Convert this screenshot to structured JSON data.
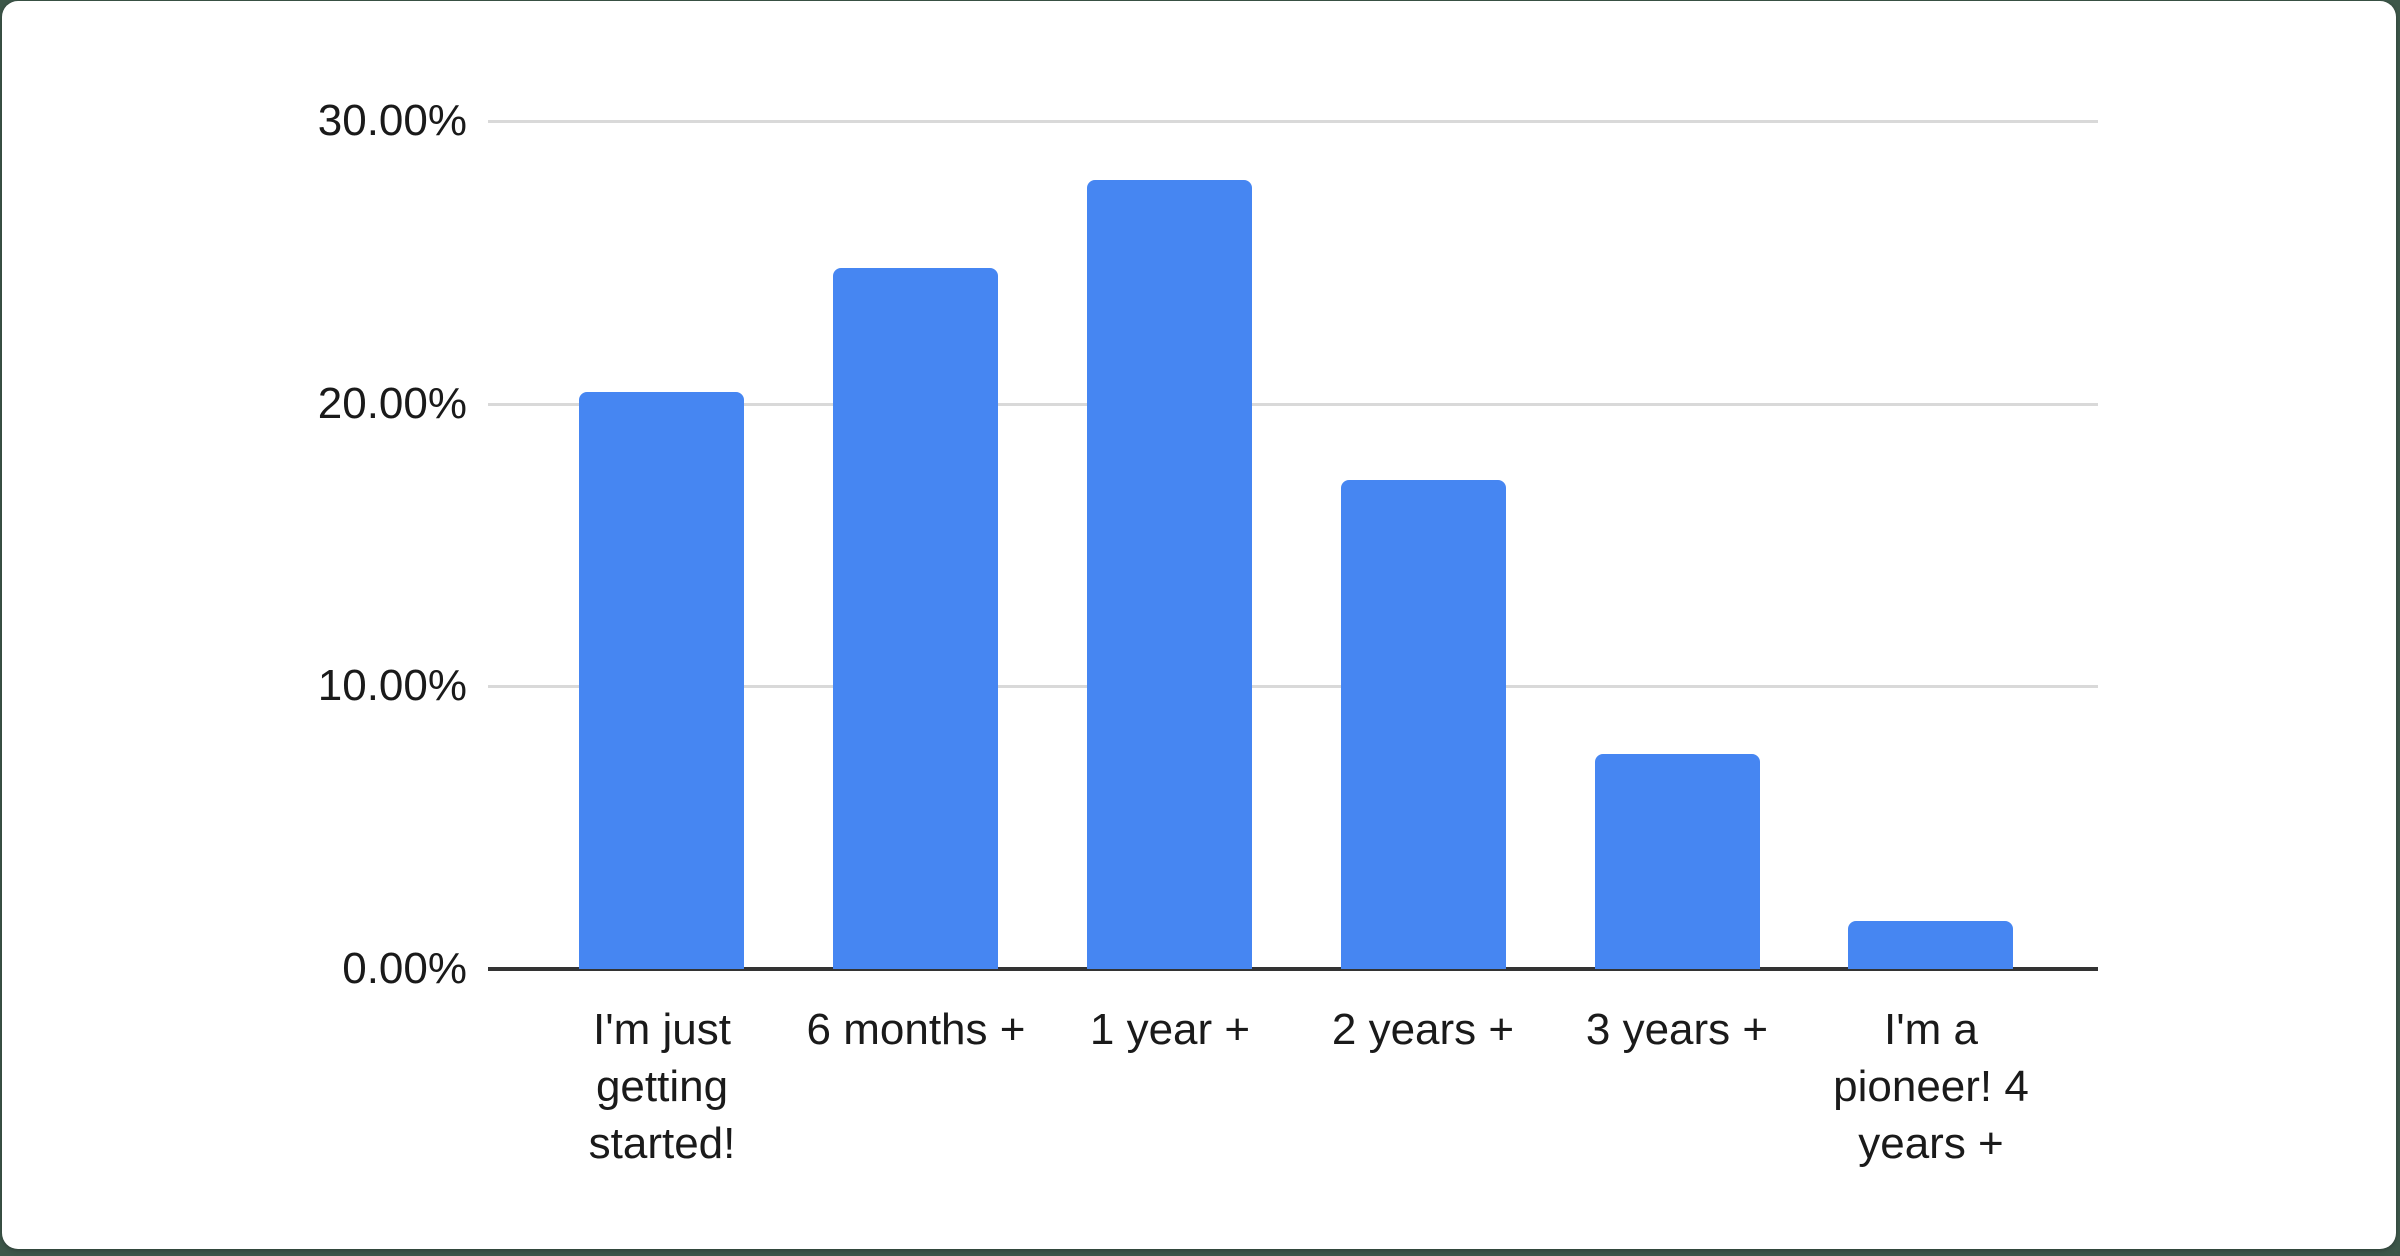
{
  "page": {
    "background_color": "#3d5749",
    "card_background_color": "#ffffff"
  },
  "chart_data": {
    "type": "bar",
    "title": "",
    "xlabel": "",
    "ylabel": "",
    "categories": [
      "I'm just getting started!",
      "6 months +",
      "1 year +",
      "2 years +",
      "3 years +",
      "I'm a pioneer! 4 years +"
    ],
    "values": [
      20.4,
      24.8,
      27.9,
      17.3,
      7.6,
      1.7
    ],
    "value_unit": "%",
    "ylim": [
      0,
      30
    ],
    "y_ticks": [
      "30.00%",
      "20.00%",
      "10.00%",
      "0.00%"
    ],
    "y_tick_values": [
      30,
      20,
      10,
      0
    ],
    "grid": true,
    "legend_position": "none",
    "bar_color": "#4686F2",
    "gridline_color": "#d9d9d9",
    "axis_line_color": "#333333",
    "label_color": "#1a1a1a"
  }
}
